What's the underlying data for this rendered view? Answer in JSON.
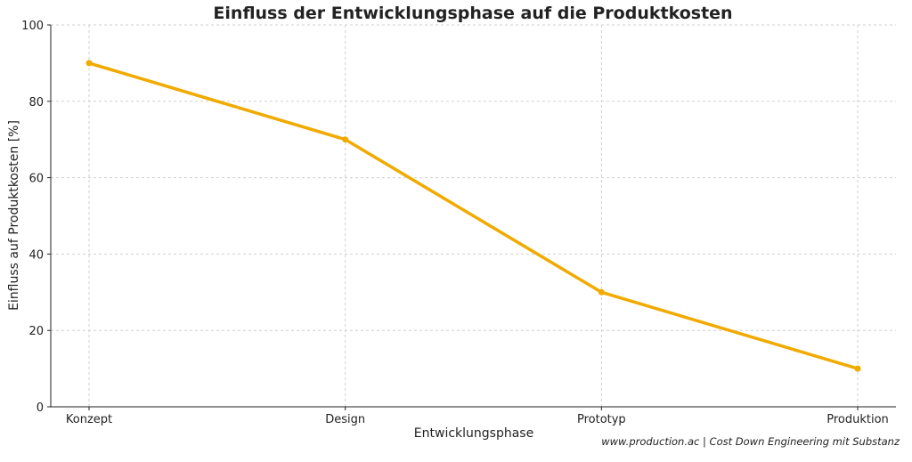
{
  "chart_data": {
    "type": "line",
    "title": "Einfluss der Entwicklungsphase auf die Produktkosten",
    "xlabel": "Entwicklungsphase",
    "ylabel": "Einfluss auf Produktkosten [%]",
    "categories": [
      "Konzept",
      "Design",
      "Prototyp",
      "Produktion"
    ],
    "series": [
      {
        "values": [
          90,
          70,
          30,
          10
        ],
        "color": "#f0aa00"
      }
    ],
    "ylim": [
      0,
      100
    ],
    "yticks": [
      0,
      20,
      40,
      60,
      80,
      100
    ],
    "grid": true,
    "legend": "none"
  },
  "footer": {
    "source_text": "www.production.ac | Cost Down Engineering mit Substanz"
  }
}
